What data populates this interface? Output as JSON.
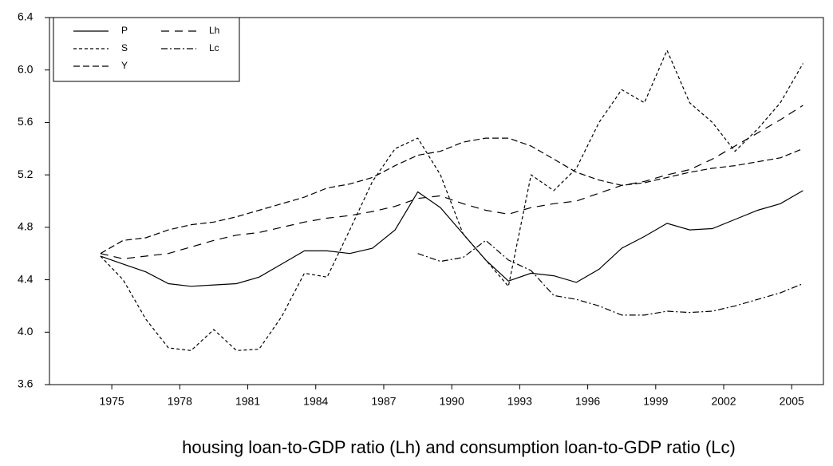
{
  "chart_data": {
    "type": "line",
    "xlabel": "housing loan-to-GDP ratio (Lh) and consumption loan-to-GDP ratio (Lc)",
    "x": [
      1974.5,
      1975.5,
      1976.5,
      1977.5,
      1978.5,
      1979.5,
      1980.5,
      1981.5,
      1982.5,
      1983.5,
      1984.5,
      1985.5,
      1986.5,
      1987.5,
      1988.5,
      1989.5,
      1990.5,
      1991.5,
      1992.5,
      1993.5,
      1994.5,
      1995.5,
      1996.5,
      1997.5,
      1998.5,
      1999.5,
      2000.5,
      2001.5,
      2002.5,
      2003.5,
      2004.5,
      2005.5
    ],
    "xlim": [
      1972.25,
      2006.4
    ],
    "xticks": [
      1975,
      1978,
      1981,
      1984,
      1987,
      1990,
      1993,
      1996,
      1999,
      2002,
      2005
    ],
    "ylim": [
      3.6,
      6.4
    ],
    "yticks": [
      3.6,
      {
        "value": 4,
        "label": "4.0"
      },
      4.4,
      4.8,
      5.2,
      5.6,
      {
        "value": 6,
        "label": "6.0"
      },
      6.4
    ],
    "legend": "upper left",
    "series": [
      {
        "name": "P",
        "color": "#000000",
        "dash": "none",
        "values": [
          4.58,
          4.52,
          4.46,
          4.37,
          4.35,
          4.36,
          4.37,
          4.42,
          4.52,
          4.62,
          4.62,
          4.6,
          4.64,
          4.78,
          5.07,
          4.95,
          4.75,
          4.55,
          4.39,
          4.45,
          4.43,
          4.38,
          4.48,
          4.64,
          4.73,
          4.83,
          4.78,
          4.79,
          4.86,
          4.93,
          4.98,
          5.08
        ]
      },
      {
        "name": "S",
        "color": "#000000",
        "dash": "4,3",
        "values": [
          4.58,
          4.4,
          4.1,
          3.88,
          3.86,
          4.02,
          3.86,
          3.87,
          4.12,
          4.45,
          4.42,
          4.78,
          5.15,
          5.4,
          5.48,
          5.2,
          4.75,
          4.55,
          4.35,
          5.2,
          5.08,
          5.25,
          5.6,
          5.85,
          5.75,
          6.15,
          5.75,
          5.6,
          5.38,
          5.55,
          5.75,
          6.05
        ]
      },
      {
        "name": "Y",
        "color": "#000000",
        "dash": "8,4",
        "values": [
          4.6,
          4.7,
          4.72,
          4.78,
          4.82,
          4.84,
          4.88,
          4.93,
          4.98,
          5.03,
          5.1,
          5.13,
          5.18,
          5.27,
          5.35,
          5.38,
          5.45,
          5.48,
          5.48,
          5.42,
          5.32,
          5.22,
          5.16,
          5.12,
          5.14,
          5.18,
          5.22,
          5.25,
          5.27,
          5.3,
          5.33,
          5.4
        ]
      },
      {
        "name": "Lh",
        "color": "#000000",
        "dash": "10,7",
        "values": [
          4.6,
          4.56,
          4.58,
          4.6,
          4.65,
          4.7,
          4.74,
          4.76,
          4.8,
          4.84,
          4.87,
          4.89,
          4.92,
          4.96,
          5.02,
          5.04,
          4.98,
          4.93,
          4.9,
          4.95,
          4.98,
          5.0,
          5.06,
          5.12,
          5.15,
          5.2,
          5.24,
          5.32,
          5.42,
          5.52,
          5.62,
          5.73
        ]
      },
      {
        "name": "Lc",
        "color": "#000000",
        "dash": "8,3,2,3",
        "values": [
          null,
          null,
          null,
          null,
          null,
          null,
          null,
          null,
          null,
          null,
          null,
          null,
          null,
          null,
          4.6,
          4.54,
          4.57,
          4.7,
          4.55,
          4.47,
          4.28,
          4.25,
          4.2,
          4.13,
          4.13,
          4.16,
          4.15,
          4.16,
          4.2,
          4.25,
          4.3,
          4.37
        ]
      }
    ]
  }
}
